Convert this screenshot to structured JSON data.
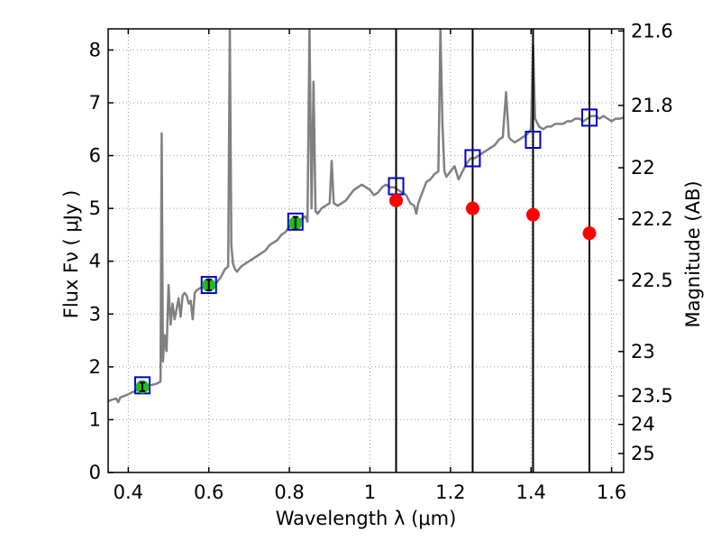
{
  "chart_data": {
    "type": "scatter",
    "xlabel": "Wavelength  λ (μm)",
    "ylabel": "Flux  Fν  ( μJy )",
    "ylabel_right": "Magnitude (AB)",
    "xlim": [
      0.35,
      1.63
    ],
    "ylim": [
      0,
      8.4
    ],
    "grid": true,
    "x_ticks": [
      0.4,
      0.6,
      0.8,
      1.0,
      1.2,
      1.4,
      1.6
    ],
    "x_tick_labels": [
      "0.4",
      "0.6",
      "0.8",
      "1",
      "1.2",
      "1.4",
      "1.6"
    ],
    "y_ticks": [
      0,
      1,
      2,
      3,
      4,
      5,
      6,
      7,
      8
    ],
    "y_tick_labels": [
      "0",
      "1",
      "2",
      "3",
      "4",
      "5",
      "6",
      "7",
      "8"
    ],
    "right_ticks": [
      {
        "label": "21.6",
        "flux": 8.36
      },
      {
        "label": "21.8",
        "flux": 6.95
      },
      {
        "label": "22",
        "flux": 5.77
      },
      {
        "label": "22.2",
        "flux": 4.8
      },
      {
        "label": "22.5",
        "flux": 3.64
      },
      {
        "label": "23",
        "flux": 2.29
      },
      {
        "label": "23.5",
        "flux": 1.45
      },
      {
        "label": "24",
        "flux": 0.91
      },
      {
        "label": "25",
        "flux": 0.36
      }
    ],
    "vertical_lines": [
      1.065,
      1.255,
      1.405,
      1.545
    ],
    "colors": {
      "spectrum": "#808080",
      "model_box": "#0000cc",
      "observed": "#22bb22",
      "predicted": "#ff0000",
      "vline": "#000000",
      "grid": "#999999"
    },
    "spectrum": [
      [
        0.35,
        1.35
      ],
      [
        0.36,
        1.38
      ],
      [
        0.37,
        1.4
      ],
      [
        0.375,
        1.33
      ],
      [
        0.38,
        1.42
      ],
      [
        0.39,
        1.45
      ],
      [
        0.4,
        1.48
      ],
      [
        0.41,
        1.52
      ],
      [
        0.42,
        1.55
      ],
      [
        0.43,
        1.58
      ],
      [
        0.44,
        1.62
      ],
      [
        0.45,
        1.65
      ],
      [
        0.46,
        1.66
      ],
      [
        0.47,
        1.68
      ],
      [
        0.475,
        1.7
      ],
      [
        0.48,
        1.72
      ],
      [
        0.483,
        6.42
      ],
      [
        0.486,
        2.1
      ],
      [
        0.49,
        2.6
      ],
      [
        0.495,
        2.3
      ],
      [
        0.5,
        3.55
      ],
      [
        0.505,
        2.8
      ],
      [
        0.51,
        3.2
      ],
      [
        0.515,
        2.9
      ],
      [
        0.52,
        3.1
      ],
      [
        0.525,
        3.3
      ],
      [
        0.53,
        2.95
      ],
      [
        0.535,
        3.35
      ],
      [
        0.54,
        3.4
      ],
      [
        0.545,
        3.35
      ],
      [
        0.55,
        3.2
      ],
      [
        0.555,
        3.25
      ],
      [
        0.56,
        2.9
      ],
      [
        0.565,
        3.4
      ],
      [
        0.57,
        3.45
      ],
      [
        0.58,
        3.5
      ],
      [
        0.59,
        3.5
      ],
      [
        0.6,
        3.55
      ],
      [
        0.61,
        3.55
      ],
      [
        0.62,
        3.6
      ],
      [
        0.63,
        3.7
      ],
      [
        0.64,
        3.85
      ],
      [
        0.648,
        3.9
      ],
      [
        0.652,
        8.4
      ],
      [
        0.656,
        4.3
      ],
      [
        0.66,
        3.95
      ],
      [
        0.665,
        3.85
      ],
      [
        0.67,
        3.8
      ],
      [
        0.68,
        3.9
      ],
      [
        0.69,
        3.95
      ],
      [
        0.7,
        4.0
      ],
      [
        0.72,
        4.1
      ],
      [
        0.74,
        4.2
      ],
      [
        0.75,
        4.3
      ],
      [
        0.76,
        4.35
      ],
      [
        0.77,
        4.4
      ],
      [
        0.78,
        4.5
      ],
      [
        0.79,
        4.55
      ],
      [
        0.8,
        4.65
      ],
      [
        0.81,
        4.7
      ],
      [
        0.82,
        4.75
      ],
      [
        0.83,
        4.8
      ],
      [
        0.84,
        4.85
      ],
      [
        0.845,
        4.75
      ],
      [
        0.85,
        8.4
      ],
      [
        0.855,
        5.0
      ],
      [
        0.86,
        7.4
      ],
      [
        0.865,
        4.95
      ],
      [
        0.87,
        4.9
      ],
      [
        0.88,
        5.0
      ],
      [
        0.89,
        5.05
      ],
      [
        0.9,
        5.1
      ],
      [
        0.905,
        5.9
      ],
      [
        0.91,
        5.1
      ],
      [
        0.92,
        5.05
      ],
      [
        0.93,
        5.1
      ],
      [
        0.94,
        5.15
      ],
      [
        0.95,
        5.25
      ],
      [
        0.96,
        5.35
      ],
      [
        0.97,
        5.4
      ],
      [
        0.98,
        5.45
      ],
      [
        0.99,
        5.4
      ],
      [
        1.0,
        5.35
      ],
      [
        1.01,
        5.25
      ],
      [
        1.02,
        5.3
      ],
      [
        1.03,
        5.4
      ],
      [
        1.04,
        5.45
      ],
      [
        1.05,
        5.4
      ],
      [
        1.06,
        5.4
      ],
      [
        1.07,
        5.35
      ],
      [
        1.08,
        5.3
      ],
      [
        1.09,
        5.25
      ],
      [
        1.1,
        5.1
      ],
      [
        1.11,
        5.05
      ],
      [
        1.115,
        4.9
      ],
      [
        1.12,
        5.1
      ],
      [
        1.13,
        5.3
      ],
      [
        1.14,
        5.5
      ],
      [
        1.15,
        5.55
      ],
      [
        1.16,
        5.65
      ],
      [
        1.17,
        5.7
      ],
      [
        1.175,
        8.4
      ],
      [
        1.18,
        6.6
      ],
      [
        1.185,
        5.7
      ],
      [
        1.19,
        5.6
      ],
      [
        1.2,
        5.7
      ],
      [
        1.21,
        5.8
      ],
      [
        1.22,
        5.55
      ],
      [
        1.23,
        5.7
      ],
      [
        1.24,
        5.85
      ],
      [
        1.25,
        5.95
      ],
      [
        1.26,
        5.95
      ],
      [
        1.27,
        6.0
      ],
      [
        1.28,
        6.05
      ],
      [
        1.29,
        6.1
      ],
      [
        1.3,
        6.15
      ],
      [
        1.31,
        6.2
      ],
      [
        1.32,
        6.3
      ],
      [
        1.33,
        6.35
      ],
      [
        1.338,
        7.2
      ],
      [
        1.345,
        6.35
      ],
      [
        1.35,
        6.3
      ],
      [
        1.36,
        6.25
      ],
      [
        1.37,
        6.3
      ],
      [
        1.38,
        6.35
      ],
      [
        1.39,
        6.4
      ],
      [
        1.4,
        6.5
      ],
      [
        1.405,
        8.1
      ],
      [
        1.41,
        6.7
      ],
      [
        1.42,
        6.55
      ],
      [
        1.43,
        6.5
      ],
      [
        1.44,
        6.55
      ],
      [
        1.45,
        6.55
      ],
      [
        1.46,
        6.6
      ],
      [
        1.47,
        6.6
      ],
      [
        1.48,
        6.6
      ],
      [
        1.49,
        6.65
      ],
      [
        1.5,
        6.65
      ],
      [
        1.51,
        6.7
      ],
      [
        1.52,
        6.7
      ],
      [
        1.53,
        6.65
      ],
      [
        1.54,
        6.7
      ],
      [
        1.55,
        6.75
      ],
      [
        1.56,
        6.75
      ],
      [
        1.57,
        6.7
      ],
      [
        1.58,
        6.75
      ],
      [
        1.59,
        6.7
      ],
      [
        1.6,
        6.65
      ],
      [
        1.61,
        6.7
      ],
      [
        1.62,
        6.7
      ],
      [
        1.63,
        6.72
      ]
    ],
    "model_photometry": [
      {
        "x": 0.435,
        "y": 1.65
      },
      {
        "x": 0.6,
        "y": 3.55
      },
      {
        "x": 0.815,
        "y": 4.75
      },
      {
        "x": 1.065,
        "y": 5.42
      },
      {
        "x": 1.255,
        "y": 5.95
      },
      {
        "x": 1.405,
        "y": 6.3
      },
      {
        "x": 1.545,
        "y": 6.72
      }
    ],
    "observed": [
      {
        "x": 0.435,
        "y": 1.62,
        "err": 0.08
      },
      {
        "x": 0.6,
        "y": 3.55,
        "err": 0.1
      },
      {
        "x": 0.815,
        "y": 4.72,
        "err": 0.12
      }
    ],
    "predicted": [
      {
        "x": 1.065,
        "y": 5.15
      },
      {
        "x": 1.255,
        "y": 5.0
      },
      {
        "x": 1.405,
        "y": 4.88
      },
      {
        "x": 1.545,
        "y": 4.53
      }
    ]
  }
}
